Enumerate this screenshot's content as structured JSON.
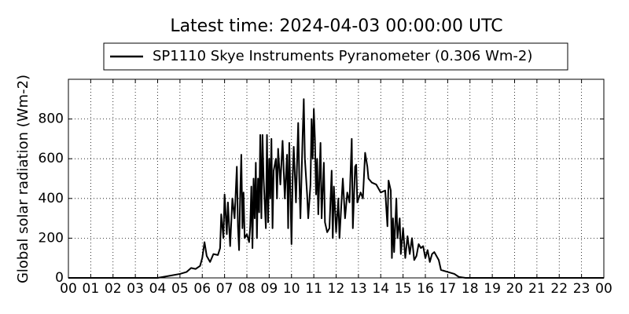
{
  "chart_data": {
    "type": "line",
    "title": "Latest time: 2024-04-03 00:00:00 UTC",
    "y_label": "Global solar radiation (Wm-2)",
    "grid": true,
    "legend_position": "top",
    "xlim": [
      0,
      24
    ],
    "ylim": [
      0,
      1000
    ],
    "xticks": [
      {
        "value": 0,
        "label": "00"
      },
      {
        "value": 1,
        "label": "01"
      },
      {
        "value": 2,
        "label": "02"
      },
      {
        "value": 3,
        "label": "03"
      },
      {
        "value": 4,
        "label": "04"
      },
      {
        "value": 5,
        "label": "05"
      },
      {
        "value": 6,
        "label": "06"
      },
      {
        "value": 7,
        "label": "07"
      },
      {
        "value": 8,
        "label": "08"
      },
      {
        "value": 9,
        "label": "09"
      },
      {
        "value": 10,
        "label": "10"
      },
      {
        "value": 11,
        "label": "11"
      },
      {
        "value": 12,
        "label": "12"
      },
      {
        "value": 13,
        "label": "13"
      },
      {
        "value": 14,
        "label": "14"
      },
      {
        "value": 15,
        "label": "15"
      },
      {
        "value": 16,
        "label": "16"
      },
      {
        "value": 17,
        "label": "17"
      },
      {
        "value": 18,
        "label": "18"
      },
      {
        "value": 19,
        "label": "19"
      },
      {
        "value": 20,
        "label": "20"
      },
      {
        "value": 21,
        "label": "21"
      },
      {
        "value": 22,
        "label": "22"
      },
      {
        "value": 23,
        "label": "23"
      },
      {
        "value": 24,
        "label": "00"
      }
    ],
    "yticks": [
      0,
      200,
      400,
      600,
      800
    ],
    "series": [
      {
        "name": "SP1110 Skye Instruments Pyranometer (0.306 Wm-2)",
        "color": "#000000",
        "x": [
          0,
          4,
          4.5,
          5,
          5.3,
          5.5,
          5.7,
          5.9,
          6.0,
          6.1,
          6.2,
          6.35,
          6.5,
          6.7,
          6.8,
          6.85,
          6.95,
          7.0,
          7.1,
          7.15,
          7.25,
          7.35,
          7.45,
          7.55,
          7.6,
          7.65,
          7.7,
          7.75,
          7.8,
          7.85,
          7.9,
          8.0,
          8.1,
          8.15,
          8.2,
          8.25,
          8.3,
          8.35,
          8.4,
          8.45,
          8.5,
          8.55,
          8.6,
          8.65,
          8.7,
          8.75,
          8.85,
          8.9,
          8.95,
          9.0,
          9.05,
          9.1,
          9.15,
          9.2,
          9.3,
          9.35,
          9.4,
          9.5,
          9.6,
          9.7,
          9.8,
          9.85,
          9.9,
          10.0,
          10.05,
          10.1,
          10.2,
          10.3,
          10.35,
          10.4,
          10.5,
          10.55,
          10.6,
          10.7,
          10.75,
          10.85,
          10.9,
          10.95,
          11.0,
          11.05,
          11.1,
          11.15,
          11.2,
          11.3,
          11.35,
          11.45,
          11.5,
          11.6,
          11.7,
          11.8,
          11.85,
          11.9,
          12.0,
          12.1,
          12.15,
          12.3,
          12.4,
          12.5,
          12.6,
          12.7,
          12.75,
          12.85,
          12.9,
          12.95,
          13.1,
          13.2,
          13.3,
          13.4,
          13.45,
          13.6,
          13.8,
          14.0,
          14.2,
          14.3,
          14.35,
          14.45,
          14.5,
          14.55,
          14.6,
          14.7,
          14.75,
          14.85,
          14.9,
          15.0,
          15.1,
          15.2,
          15.3,
          15.4,
          15.5,
          15.6,
          15.7,
          15.8,
          15.9,
          16.0,
          16.1,
          16.2,
          16.3,
          16.4,
          16.6,
          16.7,
          17.0,
          17.3,
          17.5,
          17.8,
          24
        ],
        "values": [
          0,
          0,
          10,
          20,
          30,
          50,
          45,
          60,
          100,
          180,
          110,
          80,
          120,
          115,
          150,
          320,
          200,
          420,
          220,
          380,
          160,
          400,
          300,
          560,
          260,
          140,
          420,
          620,
          250,
          430,
          200,
          220,
          180,
          260,
          460,
          150,
          500,
          300,
          580,
          200,
          500,
          330,
          720,
          300,
          720,
          500,
          250,
          720,
          280,
          600,
          400,
          700,
          250,
          540,
          600,
          400,
          650,
          470,
          690,
          400,
          620,
          250,
          680,
          170,
          500,
          660,
          380,
          780,
          500,
          300,
          720,
          900,
          600,
          420,
          300,
          470,
          800,
          600,
          850,
          700,
          420,
          600,
          320,
          680,
          300,
          580,
          280,
          230,
          250,
          540,
          200,
          460,
          230,
          400,
          200,
          500,
          300,
          430,
          380,
          700,
          250,
          560,
          570,
          380,
          430,
          400,
          630,
          560,
          500,
          480,
          470,
          430,
          440,
          260,
          490,
          440,
          100,
          300,
          130,
          400,
          200,
          300,
          120,
          250,
          100,
          210,
          120,
          200,
          90,
          110,
          170,
          150,
          160,
          100,
          140,
          80,
          120,
          130,
          90,
          40,
          30,
          20,
          5,
          0,
          0
        ]
      }
    ]
  }
}
